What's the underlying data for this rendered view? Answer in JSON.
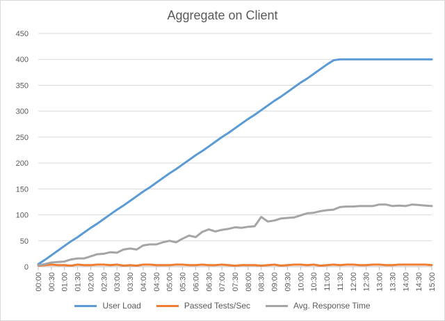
{
  "chart_data": {
    "type": "line",
    "title": "Aggregate on Client",
    "xlabel": "",
    "ylabel": "",
    "ylim": [
      0,
      450
    ],
    "yticks": [
      0,
      50,
      100,
      150,
      200,
      250,
      300,
      350,
      400,
      450
    ],
    "x_labels": [
      "00:00",
      "00:30",
      "01:00",
      "01:30",
      "02:00",
      "02:30",
      "03:00",
      "03:30",
      "04:00",
      "04:30",
      "05:00",
      "05:30",
      "06:00",
      "06:30",
      "07:00",
      "07:30",
      "08:00",
      "08:30",
      "09:00",
      "09:30",
      "10:00",
      "10:30",
      "11:00",
      "11:30",
      "12:00",
      "12:30",
      "13:00",
      "13:30",
      "14:00",
      "14:30",
      "15:00"
    ],
    "grid": true,
    "legend_position": "bottom",
    "series": [
      {
        "name": "User Load",
        "color": "#5b9bd5",
        "values": [
          5,
          13,
          22,
          31,
          40,
          49,
          57,
          66,
          75,
          83,
          92,
          101,
          110,
          118,
          127,
          136,
          145,
          153,
          162,
          171,
          180,
          188,
          197,
          206,
          215,
          223,
          232,
          241,
          250,
          258,
          267,
          276,
          285,
          293,
          302,
          311,
          320,
          328,
          337,
          346,
          355,
          363,
          372,
          381,
          390,
          398,
          400,
          400,
          400,
          400,
          400,
          400,
          400,
          400,
          400,
          400,
          400,
          400,
          400,
          400,
          400
        ]
      },
      {
        "name": "Passed Tests/Sec",
        "color": "#ed7d31",
        "values": [
          2,
          3,
          4,
          3,
          3,
          2,
          4,
          3,
          3,
          4,
          4,
          3,
          4,
          2,
          3,
          2,
          4,
          4,
          3,
          3,
          3,
          4,
          4,
          3,
          3,
          4,
          3,
          3,
          4,
          3,
          2,
          3,
          3,
          3,
          2,
          3,
          4,
          2,
          3,
          4,
          4,
          3,
          4,
          2,
          3,
          4,
          3,
          4,
          4,
          3,
          3,
          4,
          4,
          3,
          3,
          4,
          4,
          4,
          4,
          4,
          3
        ]
      },
      {
        "name": "Avg. Response Time",
        "color": "#a5a5a5",
        "values": [
          3,
          5,
          8,
          9,
          10,
          14,
          16,
          16,
          20,
          24,
          25,
          28,
          27,
          33,
          35,
          33,
          41,
          43,
          43,
          47,
          50,
          47,
          54,
          60,
          57,
          67,
          72,
          68,
          71,
          73,
          76,
          75,
          77,
          78,
          96,
          87,
          89,
          93,
          94,
          95,
          99,
          103,
          104,
          107,
          109,
          110,
          115,
          116,
          116,
          117,
          117,
          117,
          120,
          120,
          117,
          118,
          117,
          120,
          119,
          118,
          117
        ]
      }
    ]
  }
}
